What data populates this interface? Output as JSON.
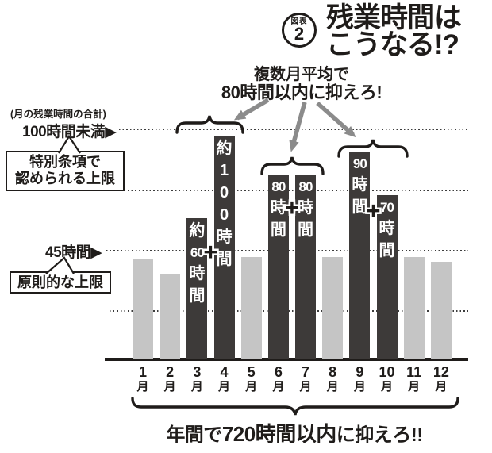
{
  "colors": {
    "ink": "#1f1c1a",
    "bar_highlight": "#3d3a39",
    "bar_normal": "#c5c5c5",
    "arrow": "#8b8b8b"
  },
  "header": {
    "badge_top": "図表",
    "badge_number": "2",
    "title_line1": "残業時間は",
    "title_line2": "こうなる!?"
  },
  "callout": {
    "line1": "複数月平均で",
    "line2": "80時間以内に抑えろ!"
  },
  "axis_labels": {
    "unit_note": "(月の残業時間の合計)",
    "limit_100": "100時間未満▶",
    "limit_100_bubble_line1": "特別条項で",
    "limit_100_bubble_line2": "認められる上限",
    "limit_45": "45時間▶",
    "limit_45_bubble": "原則的な上限"
  },
  "footer": {
    "prefix": "年間で",
    "strong": "720時間以内",
    "suffix": "に抑えろ!!"
  },
  "chart_data": {
    "type": "bar",
    "title": "残業時間はこうなる!?",
    "unit": "時間",
    "month_suffix": "月",
    "categories": [
      "1月",
      "2月",
      "3月",
      "4月",
      "5月",
      "6月",
      "7月",
      "8月",
      "9月",
      "10月",
      "11月",
      "12月"
    ],
    "values": [
      43,
      37,
      61,
      97,
      44,
      80,
      80,
      44,
      90,
      71,
      44,
      42
    ],
    "bar_labels": [
      "",
      "",
      "約60時間",
      "約100時間",
      "",
      "80時間",
      "80時間",
      "",
      "90時間",
      "70時間",
      "",
      ""
    ],
    "bar_label_segments": [
      [],
      [],
      [
        "約",
        "60",
        "時",
        "間"
      ],
      [
        "約",
        "1",
        "0",
        "0",
        "時",
        "間"
      ],
      [],
      [
        "80",
        "時",
        "間"
      ],
      [
        "80",
        "時",
        "間"
      ],
      [],
      [
        "90",
        "時",
        "間"
      ],
      [
        "70",
        "時",
        "間"
      ],
      [],
      []
    ],
    "highlighted_months": [
      3,
      4,
      6,
      7,
      9,
      10
    ],
    "plus_pairs": [
      [
        3,
        4
      ],
      [
        6,
        7
      ],
      [
        9,
        10
      ]
    ],
    "plus_symbol": "+",
    "ylim": [
      0,
      110
    ],
    "grid": true,
    "gridlines": [
      {
        "hours": 100,
        "label": "100時間未満"
      },
      {
        "hours": 73,
        "label": ""
      },
      {
        "hours": 45,
        "label": "45時間"
      },
      {
        "hours": 21,
        "label": ""
      }
    ],
    "braced_groups": [
      {
        "months": [
          3,
          4
        ],
        "note": "複数月平均で80時間以内に抑えろ!"
      },
      {
        "months": [
          6,
          7
        ],
        "note": "複数月平均で80時間以内に抑えろ!"
      },
      {
        "months": [
          9,
          10
        ],
        "note": "複数月平均で80時間以内に抑えろ!"
      }
    ],
    "annual_note": "年間で720時間以内に抑えろ!!"
  }
}
